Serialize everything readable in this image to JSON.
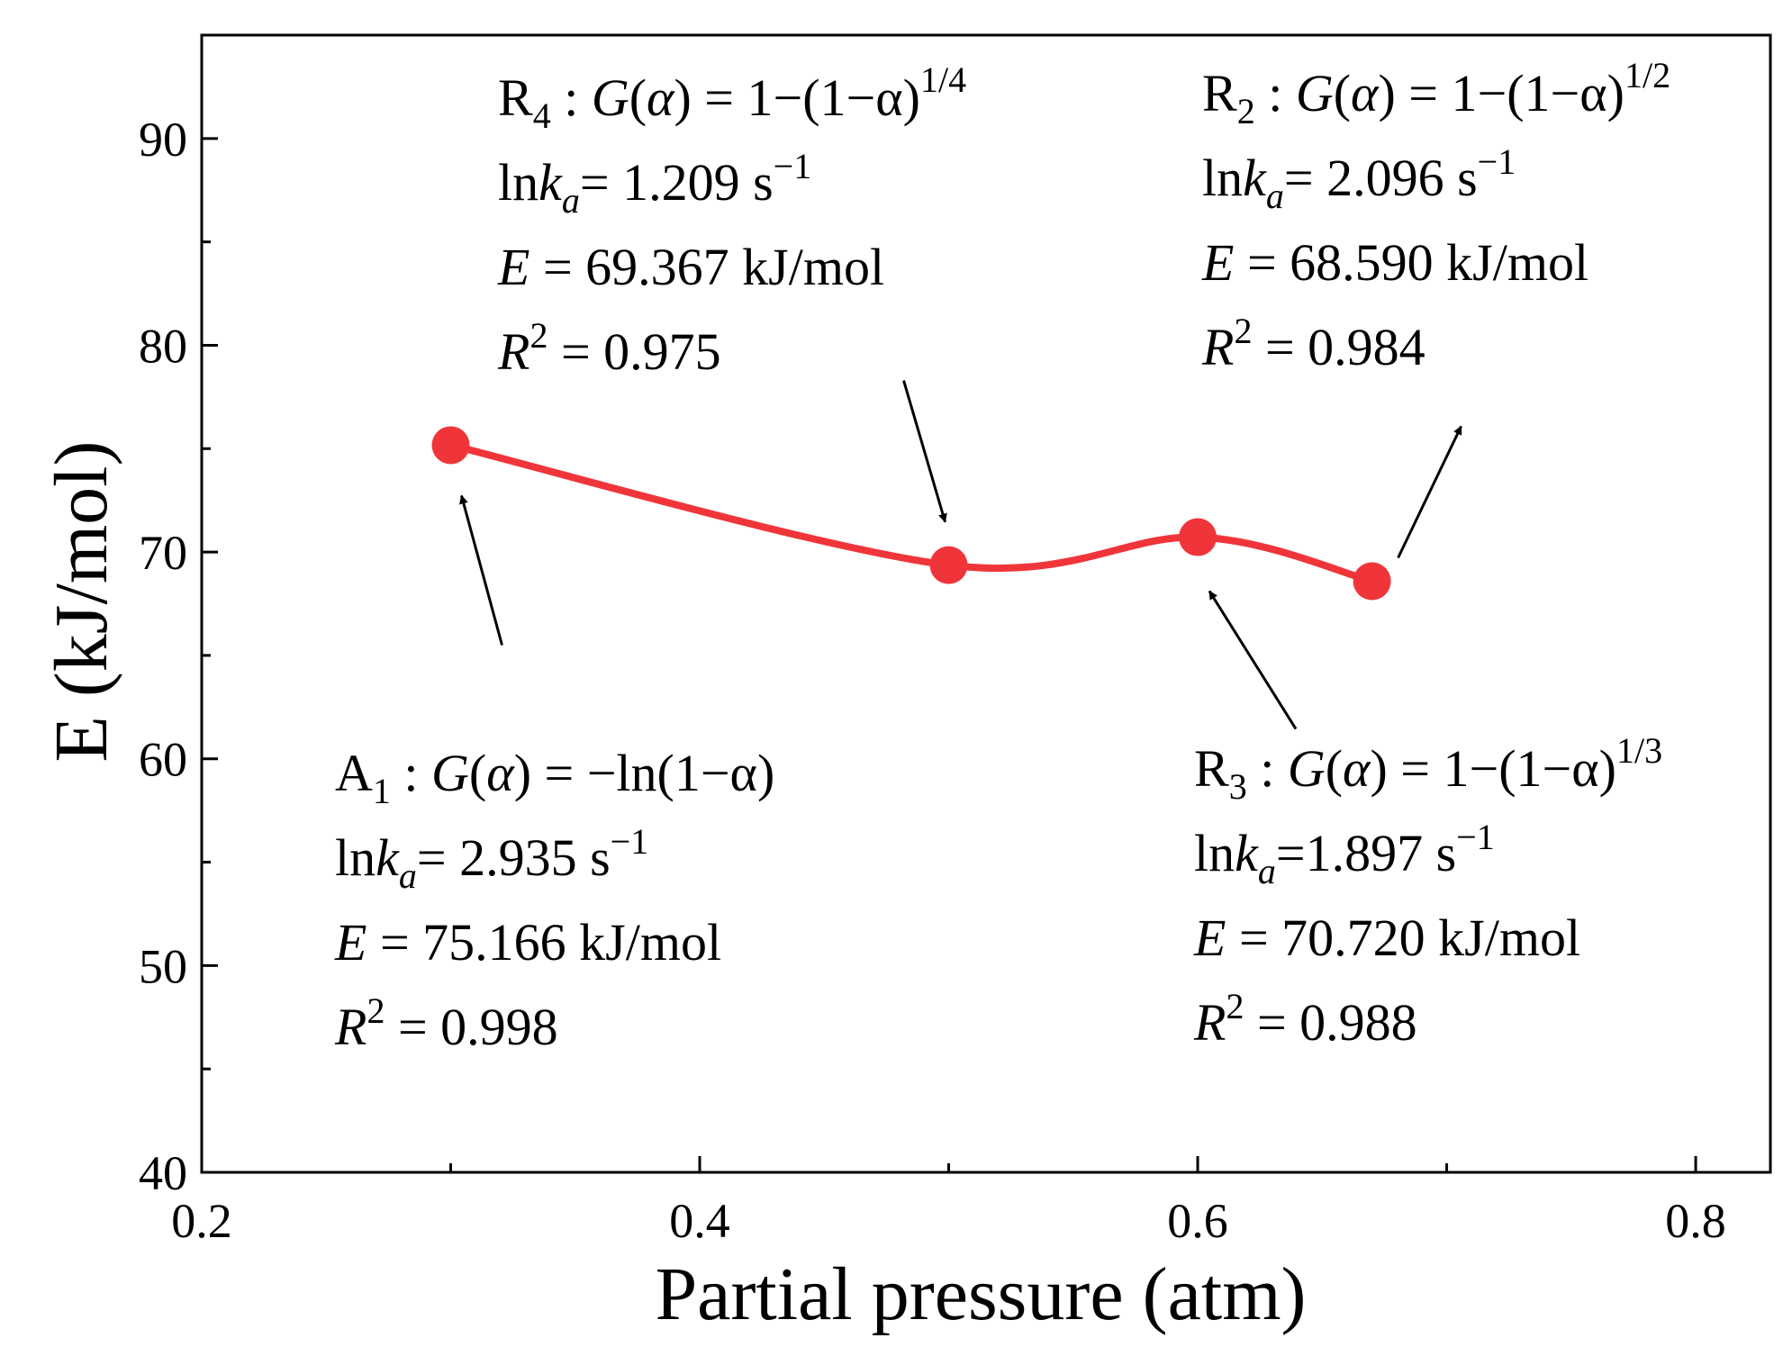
{
  "chart_data": {
    "type": "line",
    "title": "",
    "xlabel": "Partial pressure (atm)",
    "ylabel": "E (kJ/mol)",
    "xlim": [
      0.2,
      0.83
    ],
    "ylim": [
      40,
      95
    ],
    "xticks": [
      0.2,
      0.4,
      0.6,
      0.8
    ],
    "xtick_labels": [
      "0.2",
      "0.4",
      "0.6",
      "0.8"
    ],
    "yticks": [
      40,
      50,
      60,
      70,
      80,
      90
    ],
    "ytick_labels": [
      "40",
      "50",
      "60",
      "70",
      "80",
      "90"
    ],
    "xminor": [
      0.3,
      0.5,
      0.7
    ],
    "yminor": [
      45,
      55,
      65,
      75,
      85
    ],
    "grid": false,
    "legend": "none",
    "color": "#f0353a",
    "series": [
      {
        "name": "E",
        "x": [
          0.3,
          0.5,
          0.6,
          0.67
        ],
        "y": [
          75.166,
          69.367,
          70.72,
          68.59
        ]
      }
    ],
    "annotations": [
      {
        "point_index": 0,
        "model": "A",
        "model_sub": "1",
        "g_expr": "−ln(1−α)",
        "g_exp": "",
        "lnk_value": "= 2.935 s",
        "lnk_exp": "−1",
        "e_text": "= 75.166 kJ/mol",
        "r2_text": "= 0.998"
      },
      {
        "point_index": 1,
        "model": "R",
        "model_sub": "4",
        "g_expr": "1−(1−α)",
        "g_exp": "1/4",
        "lnk_value": "= 1.209 s",
        "lnk_exp": "−1",
        "e_text": "= 69.367 kJ/mol",
        "r2_text": "= 0.975"
      },
      {
        "point_index": 2,
        "model": "R",
        "model_sub": "3",
        "g_expr": "1−(1−α)",
        "g_exp": "1/3",
        "lnk_value": "=1.897 s",
        "lnk_exp": "−1",
        "e_text": "= 70.720 kJ/mol",
        "r2_text": "= 0.988"
      },
      {
        "point_index": 3,
        "model": "R",
        "model_sub": "2",
        "g_expr": "1−(1−α)",
        "g_exp": "1/2",
        "lnk_value": "= 2.096 s",
        "lnk_exp": "−1",
        "e_text": "= 68.590 kJ/mol",
        "r2_text": "= 0.984"
      }
    ]
  },
  "labels": {
    "colon": ":",
    "g": "G",
    "alpha": "α",
    "equals": "=",
    "ln": "ln",
    "k": "k",
    "k_sub": "a",
    "e_symbol": "E",
    "r_symbol": "R",
    "r_exp": "2"
  }
}
